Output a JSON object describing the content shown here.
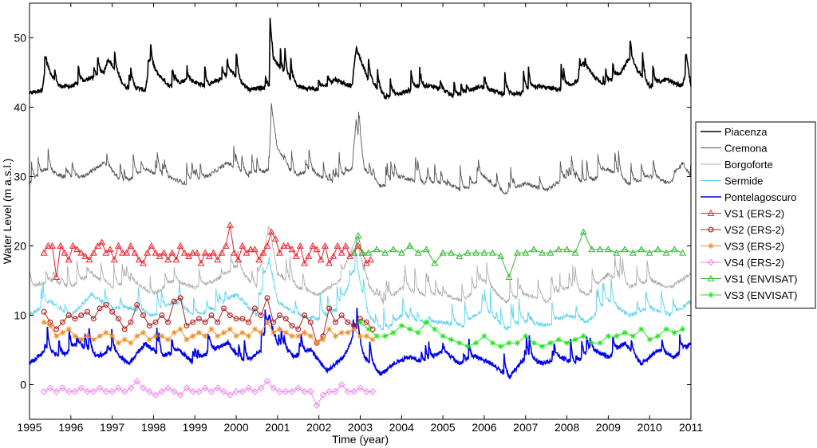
{
  "chart_data": {
    "type": "line",
    "title": "",
    "xlabel": "Time (year)",
    "ylabel": "Water Level (m a.s.l.)",
    "xlim": [
      1995,
      2011
    ],
    "ylim": [
      -5,
      55
    ],
    "xticks": [
      1995,
      1996,
      1997,
      1998,
      1999,
      2000,
      2001,
      2002,
      2003,
      2004,
      2005,
      2006,
      2007,
      2008,
      2009,
      2010,
      2011
    ],
    "yticks": [
      0,
      10,
      20,
      30,
      40,
      50
    ],
    "grid": false,
    "legend_position": "right",
    "series": [
      {
        "name": "Piacenza",
        "color": "#000000",
        "marker": "none",
        "kind": "gauge",
        "x": [
          1995.0,
          1995.3,
          1995.4,
          1995.7,
          1996.0,
          1996.4,
          1996.8,
          1996.9,
          1997.3,
          1997.8,
          1997.9,
          1998.4,
          1998.8,
          1999.3,
          1999.9,
          2000.3,
          2000.8,
          2000.82,
          2000.9,
          2001.3,
          2001.5,
          2002.0,
          2002.4,
          2002.8,
          2002.9,
          2003.2,
          2003.6,
          2004.0,
          2004.4,
          2004.8,
          2005.3,
          2005.9,
          2006.4,
          2006.9,
          2007.3,
          2007.9,
          2008.3,
          2008.4,
          2008.9,
          2009.3,
          2009.5,
          2010.0,
          2010.4,
          2010.8,
          2010.9,
          2011.0
        ],
        "y": [
          42,
          42.5,
          46,
          43,
          43,
          44,
          45,
          47,
          43,
          42.5,
          46,
          43,
          44,
          43,
          45,
          42.5,
          43,
          52.5,
          47,
          44,
          43,
          42.5,
          44,
          43,
          48.5,
          44,
          41.5,
          42,
          43,
          43,
          41.5,
          43,
          42,
          42,
          43,
          42.5,
          44,
          46,
          43,
          45,
          47,
          43,
          44,
          43,
          46,
          43
        ]
      },
      {
        "name": "Cremona",
        "color": "#555555",
        "marker": "none",
        "kind": "gauge",
        "x": [
          1995.0,
          1995.4,
          1995.8,
          1996.3,
          1996.8,
          1997.3,
          1997.8,
          1998.3,
          1998.8,
          1999.3,
          1999.8,
          2000.3,
          2000.8,
          2000.85,
          2001.0,
          2001.4,
          2001.8,
          2002.3,
          2002.8,
          2002.9,
          2003.1,
          2003.5,
          2004.0,
          2004.5,
          2005.0,
          2005.5,
          2006.0,
          2006.5,
          2007.0,
          2007.5,
          2008.0,
          2008.5,
          2009.0,
          2009.5,
          2010.0,
          2010.5,
          2010.8,
          2011.0
        ],
        "y": [
          29,
          31,
          30,
          30,
          32,
          29,
          31,
          30,
          29,
          30,
          32,
          30,
          31,
          40,
          34,
          30,
          31,
          29,
          31,
          38,
          31,
          28.5,
          30,
          29,
          29,
          28,
          30,
          27.5,
          29,
          28,
          30,
          29,
          31,
          29,
          30,
          29,
          32,
          30
        ]
      },
      {
        "name": "Borgoforte",
        "color": "#b0b0b0",
        "marker": "none",
        "kind": "gauge",
        "x": [
          1995.0,
          1995.5,
          1996.0,
          1996.5,
          1997.0,
          1997.5,
          1998.0,
          1998.5,
          1999.0,
          1999.5,
          2000.0,
          2000.5,
          2000.8,
          2001.0,
          2001.5,
          2002.0,
          2002.5,
          2002.9,
          2003.2,
          2003.6,
          2004.0,
          2004.5,
          2005.0,
          2005.5,
          2006.0,
          2006.5,
          2007.0,
          2007.5,
          2008.0,
          2008.5,
          2009.0,
          2009.5,
          2010.0,
          2010.5,
          2011.0
        ],
        "y": [
          14,
          15,
          14,
          16,
          14,
          15,
          13,
          15,
          14,
          15,
          17,
          14,
          23,
          16,
          14,
          13,
          15,
          21,
          14,
          11.5,
          14,
          13,
          13,
          12,
          15,
          12,
          13,
          12,
          14,
          13,
          16,
          14,
          15,
          14,
          16
        ]
      },
      {
        "name": "Sermide",
        "color": "#5ad2f0",
        "marker": "none",
        "kind": "gauge",
        "x": [
          1995.0,
          1995.5,
          1996.0,
          1996.5,
          1997.0,
          1997.5,
          1998.0,
          1998.5,
          1999.0,
          1999.5,
          2000.0,
          2000.5,
          2000.8,
          2001.0,
          2001.5,
          2002.0,
          2002.5,
          2002.9,
          2003.2,
          2003.6,
          2004.0,
          2004.5,
          2005.0,
          2005.5,
          2006.0,
          2006.5,
          2007.0,
          2007.5,
          2008.0,
          2008.5,
          2009.0,
          2009.5,
          2010.0,
          2010.5,
          2011.0
        ],
        "y": [
          10,
          12,
          10,
          13,
          11,
          11,
          10,
          12,
          10,
          11,
          13,
          10,
          18,
          12,
          10,
          9.5,
          11,
          17,
          10,
          7.5,
          10,
          9,
          9,
          8.5,
          11,
          8,
          9,
          8.5,
          10,
          9,
          12,
          10,
          11,
          10,
          12
        ]
      },
      {
        "name": "Pontelagoscuro",
        "color": "#0000e6",
        "marker": "none",
        "kind": "gauge",
        "x": [
          1995.0,
          1995.4,
          1995.8,
          1996.2,
          1996.6,
          1997.0,
          1997.4,
          1997.8,
          1998.2,
          1998.6,
          1999.0,
          1999.4,
          1999.8,
          2000.2,
          2000.6,
          2000.8,
          2001.0,
          2001.4,
          2001.8,
          2002.2,
          2002.6,
          2002.9,
          2003.1,
          2003.5,
          2003.8,
          2004.2,
          2004.6,
          2005.0,
          2005.4,
          2005.8,
          2006.2,
          2006.6,
          2007.0,
          2007.4,
          2007.8,
          2008.2,
          2008.6,
          2009.0,
          2009.4,
          2009.8,
          2010.2,
          2010.6,
          2011.0
        ],
        "y": [
          3,
          5,
          4,
          6,
          4,
          5,
          3,
          6,
          4,
          5,
          3,
          5,
          6,
          3,
          5,
          9.5,
          6,
          4,
          5,
          2,
          4,
          8,
          4,
          1.5,
          3,
          4,
          3,
          5,
          3,
          4,
          3,
          1,
          4,
          3,
          4,
          3,
          5,
          4,
          6,
          3,
          5,
          4,
          6
        ]
      },
      {
        "name": "VS1 (ERS-2)",
        "color": "#e8212a",
        "marker": "triangle",
        "kind": "alt",
        "x": [
          1995.35,
          1995.45,
          1995.55,
          1995.65,
          1995.75,
          1995.85,
          1995.95,
          1996.05,
          1996.15,
          1996.25,
          1996.35,
          1996.45,
          1996.55,
          1996.65,
          1996.75,
          1996.85,
          1996.95,
          1997.05,
          1997.15,
          1997.25,
          1997.35,
          1997.45,
          1997.55,
          1997.65,
          1997.75,
          1997.85,
          1997.95,
          1998.05,
          1998.15,
          1998.25,
          1998.35,
          1998.45,
          1998.55,
          1998.65,
          1998.75,
          1998.85,
          1998.95,
          1999.05,
          1999.15,
          1999.25,
          1999.35,
          1999.45,
          1999.55,
          1999.65,
          1999.75,
          1999.85,
          1999.95,
          2000.05,
          2000.15,
          2000.25,
          2000.35,
          2000.45,
          2000.55,
          2000.65,
          2000.75,
          2000.85,
          2000.95,
          2001.05,
          2001.15,
          2001.25,
          2001.35,
          2001.45,
          2001.55,
          2001.65,
          2001.75,
          2001.85,
          2001.95,
          2002.05,
          2002.15,
          2002.25,
          2002.35,
          2002.45,
          2002.55,
          2002.65,
          2002.75,
          2002.85,
          2002.95,
          2003.05,
          2003.15,
          2003.25
        ],
        "y": [
          19,
          20,
          20,
          15.5,
          20,
          19,
          18,
          20,
          19.5,
          19,
          18.5,
          18,
          19,
          20,
          20.5,
          19,
          19.5,
          18,
          20,
          19,
          19,
          20,
          19,
          18,
          17.5,
          19,
          20,
          19,
          18.5,
          19,
          18,
          19,
          18,
          20,
          19,
          18.5,
          19,
          19,
          17.5,
          19,
          18.5,
          19,
          18,
          19,
          20,
          23,
          19,
          18,
          20,
          19,
          19.5,
          19.5,
          18,
          19,
          20,
          22,
          21,
          19,
          20,
          20,
          19.5,
          18.5,
          20,
          17.5,
          18.5,
          20,
          19.5,
          18,
          20,
          17.5,
          18.5,
          20,
          19,
          20,
          18.5,
          19,
          20,
          19,
          17.5,
          18
        ]
      },
      {
        "name": "VS2 (ERS-2)",
        "color": "#b22222",
        "marker": "circle",
        "kind": "alt",
        "x": [
          1995.35,
          1995.5,
          1995.65,
          1995.8,
          1995.95,
          1996.1,
          1996.25,
          1996.4,
          1996.55,
          1996.7,
          1996.85,
          1997.0,
          1997.15,
          1997.3,
          1997.45,
          1997.6,
          1997.75,
          1997.9,
          1998.05,
          1998.2,
          1998.35,
          1998.5,
          1998.65,
          1998.8,
          1998.95,
          1999.1,
          1999.25,
          1999.4,
          1999.55,
          1999.7,
          1999.85,
          2000.0,
          2000.15,
          2000.3,
          2000.45,
          2000.6,
          2000.75,
          2000.9,
          2001.05,
          2001.2,
          2001.35,
          2001.5,
          2001.65,
          2001.8,
          2001.95,
          2002.1,
          2002.25,
          2002.4,
          2002.55,
          2002.7,
          2002.85,
          2003.0,
          2003.15,
          2003.3
        ],
        "y": [
          10.5,
          9,
          8,
          9,
          10,
          9.5,
          10,
          10.5,
          9.5,
          11,
          11.5,
          10.5,
          9.5,
          8,
          9,
          11.5,
          10,
          8.5,
          9,
          10,
          9,
          12,
          12.5,
          8.5,
          9,
          9.5,
          9,
          10,
          9,
          11,
          10,
          9.5,
          9.5,
          9,
          11,
          10,
          12.5,
          9,
          10,
          9.5,
          8.5,
          8,
          10,
          9,
          6,
          7,
          11,
          9,
          10,
          9,
          8.5,
          9.5,
          9,
          8
        ]
      },
      {
        "name": "VS3 (ERS-2)",
        "color": "#f08c28",
        "marker": "star",
        "kind": "alt",
        "x": [
          1995.35,
          1995.5,
          1995.65,
          1995.8,
          1995.95,
          1996.1,
          1996.25,
          1996.4,
          1996.55,
          1996.7,
          1996.85,
          1997.0,
          1997.15,
          1997.3,
          1997.45,
          1997.6,
          1997.75,
          1997.9,
          1998.05,
          1998.2,
          1998.35,
          1998.5,
          1998.65,
          1998.8,
          1998.95,
          1999.1,
          1999.25,
          1999.4,
          1999.55,
          1999.7,
          1999.85,
          2000.0,
          2000.15,
          2000.3,
          2000.45,
          2000.6,
          2000.75,
          2000.9,
          2001.05,
          2001.2,
          2001.35,
          2001.5,
          2001.65,
          2001.8,
          2001.95,
          2002.1,
          2002.25,
          2002.4,
          2002.55,
          2002.7,
          2002.85,
          2003.0,
          2003.15,
          2003.3
        ],
        "y": [
          9,
          8.5,
          7,
          7.5,
          8,
          7,
          6.5,
          7,
          6.5,
          7,
          7.5,
          7,
          6,
          6.5,
          6,
          7,
          7.5,
          6.5,
          7,
          7,
          6.5,
          7.5,
          8,
          6.5,
          7,
          7.5,
          7,
          8,
          7,
          7.5,
          8,
          7,
          7.5,
          7,
          8,
          7.5,
          9,
          7.5,
          8,
          7.5,
          7,
          7,
          7.5,
          7,
          6,
          6.5,
          8,
          7,
          7.5,
          7.5,
          8,
          7,
          7,
          6.5
        ]
      },
      {
        "name": "VS4 (ERS-2)",
        "color": "#f080f0",
        "marker": "diamond",
        "kind": "alt",
        "x": [
          1995.35,
          1995.5,
          1995.65,
          1995.8,
          1995.95,
          1996.1,
          1996.25,
          1996.4,
          1996.55,
          1996.7,
          1996.85,
          1997.0,
          1997.15,
          1997.3,
          1997.45,
          1997.6,
          1997.75,
          1997.9,
          1998.05,
          1998.2,
          1998.35,
          1998.5,
          1998.65,
          1998.8,
          1998.95,
          1999.1,
          1999.25,
          1999.4,
          1999.55,
          1999.7,
          1999.85,
          2000.0,
          2000.15,
          2000.3,
          2000.45,
          2000.6,
          2000.75,
          2000.9,
          2001.05,
          2001.2,
          2001.35,
          2001.5,
          2001.65,
          2001.8,
          2001.95,
          2002.1,
          2002.25,
          2002.4,
          2002.55,
          2002.7,
          2002.85,
          2003.0,
          2003.15,
          2003.3
        ],
        "y": [
          -1,
          -0.5,
          -1,
          -0.5,
          -1,
          -1,
          -0.5,
          -1,
          -1,
          -0.5,
          -1,
          -1,
          -0.5,
          -1,
          -0.5,
          0.5,
          -0.5,
          -1,
          -1.5,
          -1,
          -0.5,
          -1,
          -1.5,
          -0.5,
          -1,
          -1,
          -0.5,
          -1,
          -0.5,
          -1,
          -1.5,
          -1,
          -1,
          -0.5,
          -1,
          -0.5,
          0.5,
          -0.5,
          -1,
          -1,
          -1,
          -0.5,
          -1,
          -1,
          -3,
          -1.5,
          -1,
          -1,
          0,
          -1,
          -1,
          -0.5,
          -1,
          -1
        ]
      },
      {
        "name": "VS1 (ENVISAT)",
        "color": "#2cb82c",
        "marker": "triangle",
        "kind": "alt",
        "x": [
          2002.85,
          2002.95,
          2003.05,
          2003.2,
          2003.4,
          2003.6,
          2003.8,
          2004.0,
          2004.2,
          2004.4,
          2004.6,
          2004.8,
          2005.0,
          2005.2,
          2005.4,
          2005.6,
          2005.8,
          2006.0,
          2006.2,
          2006.4,
          2006.6,
          2006.8,
          2007.0,
          2007.2,
          2007.4,
          2007.6,
          2007.8,
          2008.0,
          2008.2,
          2008.4,
          2008.6,
          2008.8,
          2009.0,
          2009.2,
          2009.4,
          2009.6,
          2009.8,
          2010.0,
          2010.2,
          2010.4,
          2010.6,
          2010.8
        ],
        "y": [
          19,
          21.5,
          19,
          19,
          19.5,
          19,
          19.5,
          19,
          20,
          19,
          19.5,
          17.5,
          19,
          19,
          18.5,
          19,
          19,
          19,
          19,
          18.5,
          15.5,
          19,
          19,
          19.5,
          19,
          19,
          19.5,
          19.5,
          19,
          22,
          19.5,
          19.5,
          19.5,
          19,
          19.5,
          19,
          19.5,
          19,
          19.5,
          19,
          19.5,
          19
        ]
      },
      {
        "name": "VS3 (ENVISAT)",
        "color": "#1ee61e",
        "marker": "star",
        "kind": "alt",
        "x": [
          2003.0,
          2003.2,
          2003.4,
          2003.6,
          2003.8,
          2004.0,
          2004.2,
          2004.4,
          2004.6,
          2004.8,
          2005.0,
          2005.2,
          2005.4,
          2005.6,
          2005.8,
          2006.0,
          2006.2,
          2006.4,
          2006.6,
          2006.8,
          2007.0,
          2007.2,
          2007.4,
          2007.6,
          2007.8,
          2008.0,
          2008.2,
          2008.4,
          2008.6,
          2008.8,
          2009.0,
          2009.2,
          2009.4,
          2009.6,
          2009.8,
          2010.0,
          2010.2,
          2010.4,
          2010.6,
          2010.8
        ],
        "y": [
          9,
          8,
          7,
          7,
          7.5,
          8.5,
          8,
          7.5,
          9,
          8,
          7,
          6.5,
          6,
          5.5,
          6,
          7,
          6,
          5.5,
          6,
          6,
          7,
          6,
          5.5,
          6,
          6.5,
          6,
          6.5,
          7,
          6,
          6,
          7,
          7,
          7.5,
          7,
          8,
          6.5,
          7,
          8,
          7.5,
          8
        ]
      }
    ]
  }
}
